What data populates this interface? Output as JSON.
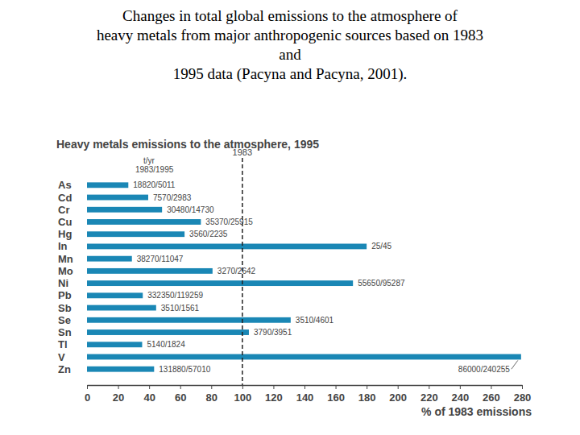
{
  "chart_data": {
    "type": "bar",
    "orientation": "horizontal",
    "title": [
      "Changes in total global emissions to the atmosphere of",
      "heavy metals from major anthropogenic sources based on 1983",
      "and",
      "1995 data (Pacyna and Pacyna, 2001)."
    ],
    "subtitle": "Heavy metals emissions to the atmosphere, 1995",
    "label_header": [
      "t/yr",
      "1983/1995"
    ],
    "x_label": "% of 1983 emissions",
    "categories": [
      "As",
      "Cd",
      "Cr",
      "Cu",
      "Hg",
      "In",
      "Mn",
      "Mo",
      "Ni",
      "Pb",
      "Sb",
      "Se",
      "Sn",
      "Tl",
      "V",
      "Zn"
    ],
    "values": [
      26.6,
      39.4,
      48.3,
      73.3,
      62.8,
      180,
      28.9,
      80.8,
      171.2,
      35.9,
      44.5,
      131.1,
      104.2,
      35.5,
      279.4,
      43.2
    ],
    "bar_labels": [
      "18820/5011",
      "7570/2983",
      "30480/14730",
      "35370/25915",
      "3560/2235",
      "25/45",
      "38270/11047",
      "3270/2642",
      "55650/95287",
      "332350/119259",
      "3510/1561",
      "3510/4601",
      "3790/3951",
      "5140/1824",
      "86000/240255",
      "131880/57010"
    ],
    "reference": {
      "value": 100,
      "label": "1983"
    },
    "color": "#1a87b5",
    "xlim": [
      0,
      280
    ],
    "xticks": [
      0,
      20,
      40,
      60,
      80,
      100,
      120,
      140,
      160,
      180,
      200,
      220,
      240,
      260,
      280
    ],
    "grid": false
  }
}
